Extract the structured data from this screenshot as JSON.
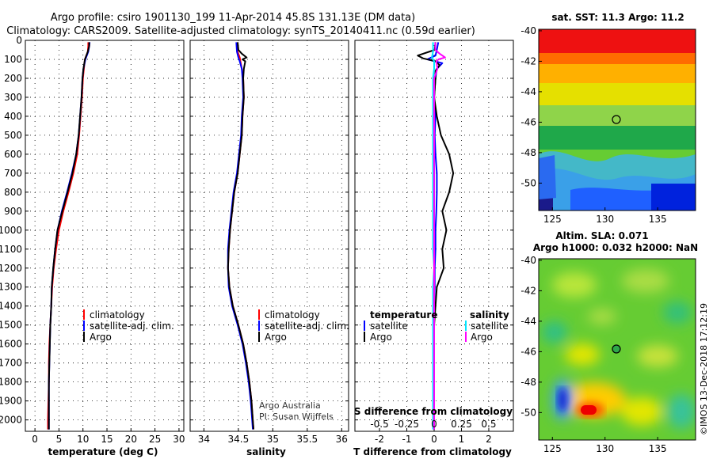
{
  "titles": {
    "line1": "Argo profile: csiro 1901130_199 11-Apr-2014 45.8S 131.13E (DM data)",
    "line2": "Climatology: CARS2009. Satellite-adjusted climatology: synTS_20140411.nc (0.59d earlier)"
  },
  "chart_data": [
    {
      "type": "line",
      "title": "",
      "xlabel": "temperature (deg C)",
      "ylabel": "",
      "xlim": [
        -2,
        31
      ],
      "ylim": [
        2060,
        0
      ],
      "xticks": [
        "0",
        "5",
        "10",
        "15",
        "20",
        "25",
        "30"
      ],
      "yticks": [
        "0",
        "100",
        "200",
        "300",
        "400",
        "500",
        "600",
        "700",
        "800",
        "900",
        "1000",
        "1100",
        "1200",
        "1300",
        "1400",
        "1500",
        "1600",
        "1700",
        "1800",
        "1900",
        "2000"
      ],
      "legend": [
        "climatology",
        "satellite-adj. clim.",
        "Argo"
      ],
      "series": [
        {
          "name": "climatology",
          "color": "#ff0000",
          "depth": [
            10,
            30,
            60,
            100,
            150,
            200,
            300,
            400,
            500,
            600,
            700,
            800,
            900,
            1000,
            1100,
            1200,
            1300,
            1400,
            1500,
            1600,
            1700,
            1800,
            1900,
            2000,
            2050
          ],
          "values": [
            11.1,
            11.1,
            11.0,
            10.4,
            10.2,
            10.0,
            9.8,
            9.5,
            9.2,
            8.8,
            8.0,
            7.0,
            5.9,
            5.0,
            4.4,
            3.9,
            3.6,
            3.4,
            3.2,
            3.0,
            2.9,
            2.9,
            2.8,
            2.7,
            2.7
          ]
        },
        {
          "name": "satellite-adj. clim.",
          "color": "#0000ff",
          "depth": [
            10,
            30,
            60,
            100,
            150,
            200,
            300,
            400,
            500,
            600,
            700,
            800,
            900,
            1000,
            1100,
            1200,
            1300,
            1400,
            1500,
            1600,
            1700,
            1800,
            1900,
            2000,
            2050
          ],
          "values": [
            11.4,
            11.3,
            11.1,
            10.5,
            10.1,
            9.9,
            9.7,
            9.4,
            9.1,
            8.6,
            7.7,
            6.7,
            5.6,
            4.7,
            4.2,
            3.8,
            3.5,
            3.4,
            3.2,
            3.1,
            3.0,
            2.9,
            2.9,
            2.9,
            2.9
          ]
        },
        {
          "name": "Argo",
          "color": "#000000",
          "depth": [
            10,
            30,
            60,
            100,
            150,
            200,
            300,
            400,
            500,
            600,
            700,
            800,
            900,
            1000,
            1100,
            1200,
            1300,
            1400,
            1500,
            1600,
            1700,
            1800,
            1900,
            2000,
            2050
          ],
          "values": [
            11.3,
            11.3,
            11.0,
            10.4,
            10.1,
            9.9,
            9.7,
            9.4,
            9.1,
            8.6,
            7.8,
            6.8,
            5.7,
            4.7,
            4.2,
            3.8,
            3.5,
            3.4,
            3.2,
            3.1,
            3.0,
            2.9,
            2.9,
            2.9,
            2.9
          ]
        }
      ]
    },
    {
      "type": "line",
      "title": "",
      "xlabel": "salinity",
      "ylabel": "",
      "xlim": [
        33.8,
        36.1
      ],
      "ylim": [
        2060,
        0
      ],
      "xticks": [
        "34",
        "34.5",
        "35",
        "35.5",
        "36"
      ],
      "legend": [
        "climatology",
        "satellite-adj. clim.",
        "Argo"
      ],
      "annotations": [
        "Argo Australia",
        "PI: Susan Wijffels"
      ],
      "series": [
        {
          "name": "climatology",
          "color": "#ff0000",
          "depth": [
            10,
            60,
            90,
            110,
            150,
            200,
            300,
            400,
            500,
            600,
            700,
            800,
            900,
            1000,
            1100,
            1200,
            1300,
            1400,
            1500,
            1600,
            1700,
            1800,
            1900,
            2000,
            2050
          ],
          "values": [
            34.48,
            34.49,
            34.52,
            34.53,
            34.55,
            34.57,
            34.58,
            34.56,
            34.55,
            34.52,
            34.49,
            34.44,
            34.41,
            34.38,
            34.36,
            34.35,
            34.37,
            34.42,
            34.5,
            34.57,
            34.62,
            34.66,
            34.69,
            34.71,
            34.72
          ]
        },
        {
          "name": "satellite-adj. clim.",
          "color": "#0000ff",
          "depth": [
            10,
            60,
            90,
            110,
            150,
            200,
            300,
            400,
            500,
            600,
            700,
            800,
            900,
            1000,
            1100,
            1200,
            1300,
            1400,
            1500,
            1600,
            1700,
            1800,
            1900,
            2000,
            2050
          ],
          "values": [
            34.47,
            34.48,
            34.5,
            34.52,
            34.55,
            34.56,
            34.57,
            34.55,
            34.54,
            34.51,
            34.48,
            34.43,
            34.4,
            34.37,
            34.35,
            34.35,
            34.36,
            34.41,
            34.49,
            34.56,
            34.61,
            34.65,
            34.68,
            34.7,
            34.71
          ]
        },
        {
          "name": "Argo",
          "color": "#000000",
          "depth": [
            10,
            50,
            70,
            90,
            100,
            110,
            150,
            200,
            300,
            400,
            500,
            600,
            700,
            800,
            900,
            1000,
            1100,
            1200,
            1300,
            1400,
            1500,
            1600,
            1700,
            1800,
            1900,
            2000,
            2050
          ],
          "values": [
            34.49,
            34.5,
            34.55,
            34.62,
            34.56,
            34.6,
            34.58,
            34.57,
            34.58,
            34.56,
            34.55,
            34.52,
            34.49,
            34.44,
            34.41,
            34.38,
            34.36,
            34.35,
            34.37,
            34.42,
            34.5,
            34.57,
            34.62,
            34.66,
            34.69,
            34.71,
            34.72
          ]
        }
      ]
    },
    {
      "type": "line",
      "title": "",
      "xlabel": "T difference from climatology",
      "ylabel": "",
      "xlim": [
        -2.9,
        2.9
      ],
      "ylim": [
        2060,
        0
      ],
      "xticks": [
        "-2",
        "-1",
        "0",
        "1",
        "2"
      ],
      "top_axis_label": "S difference from climatology",
      "top_xticks": [
        "-0.5",
        "-0.25",
        "0",
        "0.25",
        "0.5"
      ],
      "legend_headers": [
        "temperature",
        "salinity"
      ],
      "legend": [
        "satellite",
        "Argo",
        "satellite",
        "Argo"
      ],
      "series": [
        {
          "name": "temperature satellite",
          "color": "#0000ff",
          "depth": [
            10,
            50,
            80,
            100,
            120,
            150,
            200,
            300,
            400,
            500,
            600,
            700,
            800,
            900,
            1000,
            1100,
            1200,
            1300,
            1400,
            1500,
            1600,
            1700,
            1800,
            1900,
            2000,
            2050
          ],
          "values": [
            0.15,
            0.1,
            0.05,
            -0.25,
            0.3,
            0.1,
            0.05,
            0,
            0.05,
            0.02,
            0.05,
            0.1,
            0.1,
            0.08,
            0.05,
            0.05,
            0.02,
            0.02,
            0,
            0,
            0,
            0,
            0,
            0,
            0,
            0
          ]
        },
        {
          "name": "temperature Argo",
          "color": "#000000",
          "depth": [
            10,
            50,
            80,
            95,
            110,
            130,
            160,
            200,
            300,
            400,
            500,
            600,
            700,
            800,
            900,
            1000,
            1100,
            1200,
            1300,
            1400,
            1500,
            1600,
            1700,
            1800,
            1900,
            2000,
            2050
          ],
          "values": [
            0.05,
            0.02,
            -0.6,
            -0.4,
            0.05,
            0.2,
            0.05,
            0.05,
            0,
            0.1,
            0.25,
            0.55,
            0.7,
            0.55,
            0.3,
            0.45,
            0.3,
            0.35,
            0.1,
            0.05,
            0,
            0,
            0,
            0,
            0,
            0,
            0
          ]
        },
        {
          "name": "salinity satellite",
          "color": "#00e5ff",
          "depth": [
            10,
            60,
            90,
            110,
            150,
            200,
            300,
            400,
            500,
            600,
            700,
            800,
            900,
            1000,
            1100,
            1200,
            1300,
            1400,
            1500,
            1600,
            1700,
            1800,
            1900,
            2000,
            2050
          ],
          "values": [
            -0.01,
            -0.01,
            -0.02,
            0,
            0,
            -0.01,
            -0.01,
            -0.01,
            -0.01,
            -0.01,
            -0.01,
            -0.01,
            -0.01,
            -0.01,
            -0.01,
            0,
            -0.01,
            -0.01,
            -0.01,
            -0.01,
            -0.01,
            -0.01,
            -0.01,
            -0.01,
            -0.01
          ]
        },
        {
          "name": "salinity Argo",
          "color": "#ff00ff",
          "depth": [
            10,
            50,
            70,
            90,
            100,
            110,
            150,
            200,
            300,
            400,
            500,
            600,
            700,
            800,
            900,
            1000,
            1100,
            1200,
            1300,
            1400,
            1500,
            1600,
            1700,
            1800,
            1900,
            2000,
            2050
          ],
          "values": [
            0.01,
            0.01,
            0.05,
            0.1,
            0.04,
            0.02,
            0.03,
            0,
            0,
            0,
            0,
            0,
            0,
            0,
            0,
            0,
            0,
            0,
            0,
            0,
            0,
            0,
            0,
            0,
            0,
            0,
            0
          ]
        }
      ]
    },
    {
      "type": "heatmap",
      "title": "sat. SST: 11.3 Argo: 11.2",
      "xlim": [
        123.7,
        138.6
      ],
      "ylim": [
        -51.8,
        -39.9
      ],
      "xticks": [
        "125",
        "130",
        "135"
      ],
      "yticks": [
        "-40",
        "-42",
        "-44",
        "-46",
        "-48",
        "-50"
      ],
      "marker": {
        "lon": 131.13,
        "lat": -45.8
      }
    },
    {
      "type": "heatmap",
      "title": "Altim. SLA: 0.071",
      "subtitle": "Argo h1000: 0.032 h2000: NaN",
      "xlim": [
        123.7,
        138.6
      ],
      "ylim": [
        -51.8,
        -39.9
      ],
      "xticks": [
        "125",
        "130",
        "135"
      ],
      "yticks": [
        "-40",
        "-42",
        "-44",
        "-46",
        "-48",
        "-50"
      ],
      "marker": {
        "lon": 131.13,
        "lat": -45.8
      }
    }
  ],
  "watermark": "©IMOS 13-Dec-2018 17:12:19"
}
